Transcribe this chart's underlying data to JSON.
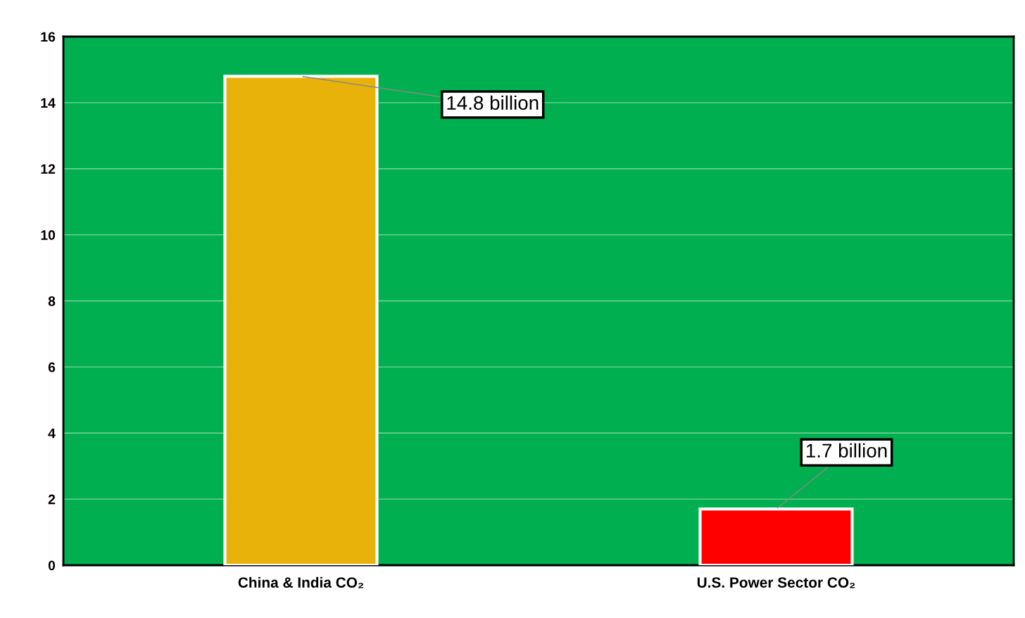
{
  "chart_data": {
    "type": "bar",
    "categories": [
      "China & India CO₂",
      "U.S. Power Sector CO₂"
    ],
    "values": [
      14.8,
      1.7
    ],
    "colors": [
      "#e8b20a",
      "#ff0000"
    ],
    "value_labels": [
      "14.8 billion",
      "1.7 billion"
    ],
    "ylim": [
      0,
      16
    ],
    "yticks": [
      0,
      2,
      4,
      6,
      8,
      10,
      12,
      14,
      16
    ],
    "grid": "y",
    "legend": false
  }
}
